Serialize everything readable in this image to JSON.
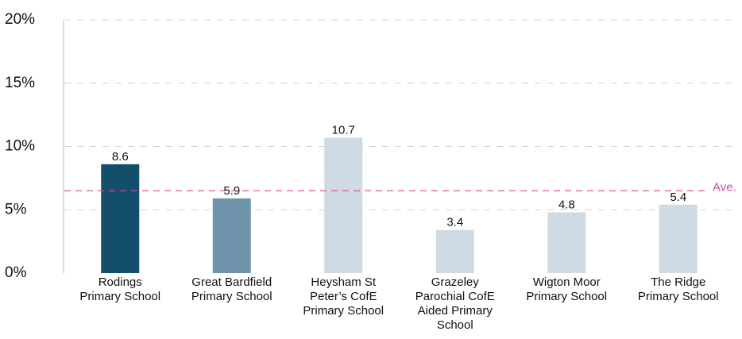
{
  "chart_data": {
    "type": "bar",
    "categories": [
      "Rodings\nPrimary School",
      "Great Bardfield\nPrimary School",
      "Heysham St\nPeter’s CofE\nPrimary School",
      "Grazeley\nParochial CofE\nAided Primary\nSchool",
      "Wigton Moor\nPrimary School",
      "The Ridge\nPrimary School"
    ],
    "values": [
      8.6,
      5.9,
      10.7,
      3.4,
      4.8,
      5.4
    ],
    "colors": [
      "#134f6b",
      "#7094ab",
      "#cfdae2",
      "#cfdae2",
      "#cfdae2",
      "#cfdae2"
    ],
    "ylim": [
      0,
      20
    ],
    "yticks": [
      {
        "value": 0,
        "label": "0%"
      },
      {
        "value": 5,
        "label": "5%"
      },
      {
        "value": 10,
        "label": "10%"
      },
      {
        "value": 15,
        "label": "15%"
      },
      {
        "value": 20,
        "label": "20%"
      }
    ],
    "grid": true,
    "average": {
      "value": 6.5,
      "label": "Ave.",
      "color": "#e0409a"
    }
  }
}
